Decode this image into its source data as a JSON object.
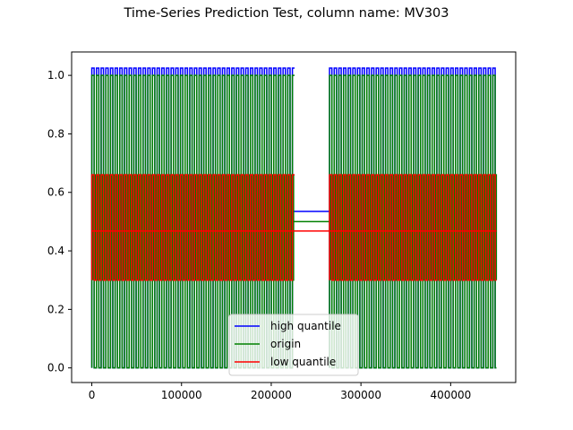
{
  "chart_data": {
    "type": "line",
    "title": "Time-Series Prediction Test, column name: MV303",
    "xlabel": "",
    "ylabel": "",
    "xlim": [
      -22500,
      472500
    ],
    "ylim": [
      -0.05,
      1.08
    ],
    "xticks": [
      0,
      100000,
      200000,
      300000,
      400000
    ],
    "yticks": [
      0.0,
      0.2,
      0.4,
      0.6,
      0.8,
      1.0
    ],
    "xtick_labels": [
      "0",
      "100000",
      "200000",
      "300000",
      "400000"
    ],
    "ytick_labels": [
      "0.0",
      "0.2",
      "0.4",
      "0.6",
      "0.8",
      "1.0"
    ],
    "grid": false,
    "legend_position": "bottom-center",
    "gap": [
      226000,
      265000
    ],
    "x_range": [
      0,
      451000
    ],
    "series": [
      {
        "name": "high quantile",
        "color": "#0000ff",
        "low": 0.0,
        "high": 1.025,
        "flat_level": 0.535
      },
      {
        "name": "origin",
        "color": "#008000",
        "low": 0.0,
        "high": 1.0,
        "flat_level": 0.5,
        "mid_low": 0.3,
        "mid_high": 0.66
      },
      {
        "name": "low quantile",
        "color": "#ff0000",
        "low": 0.3,
        "high": 0.66,
        "flat_level": 0.468
      }
    ]
  }
}
